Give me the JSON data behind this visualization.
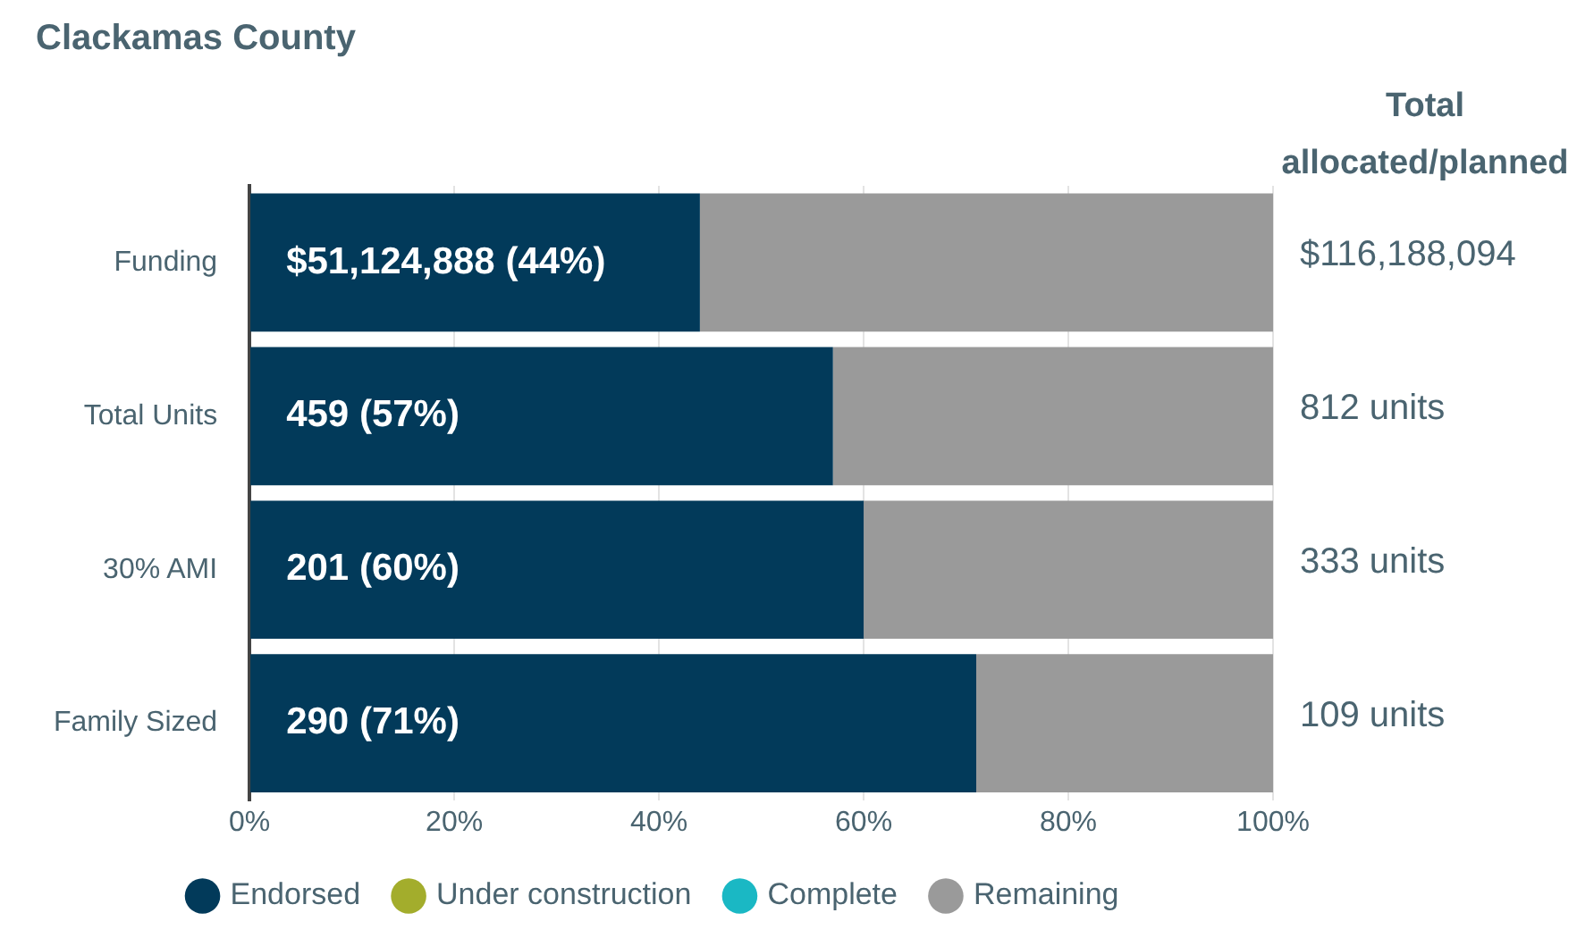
{
  "chart_data": {
    "type": "bar",
    "orientation": "horizontal",
    "stacked": true,
    "title": "Clackamas County",
    "categories": [
      "Funding",
      "Total Units",
      "30% AMI",
      "Family Sized"
    ],
    "series": [
      {
        "name": "Endorsed",
        "color": "#023a5a",
        "values": [
          44,
          57,
          60,
          71
        ],
        "value_labels": [
          "$51,124,888 (44%)",
          "459 (57%)",
          "201 (60%)",
          "290 (71%)"
        ]
      },
      {
        "name": "Under construction",
        "color": "#a3ad2c",
        "values": [
          0,
          0,
          0,
          0
        ]
      },
      {
        "name": "Complete",
        "color": "#1ab8c4",
        "values": [
          0,
          0,
          0,
          0
        ]
      },
      {
        "name": "Remaining",
        "color": "#9a9a9a",
        "values": [
          56,
          43,
          40,
          29
        ]
      }
    ],
    "xlim": [
      0,
      100
    ],
    "xticks": [
      {
        "value": 0,
        "label": "0%"
      },
      {
        "value": 20,
        "label": "20%"
      },
      {
        "value": 40,
        "label": "40%"
      },
      {
        "value": 60,
        "label": "60%"
      },
      {
        "value": 80,
        "label": "80%"
      },
      {
        "value": 100,
        "label": "100%"
      }
    ],
    "annotations": [
      "Total allocated/planned",
      "$116,188,094",
      "812 units",
      "333 units",
      "109 units"
    ],
    "grid": "x",
    "legend": "bottom",
    "marker": "circle"
  }
}
